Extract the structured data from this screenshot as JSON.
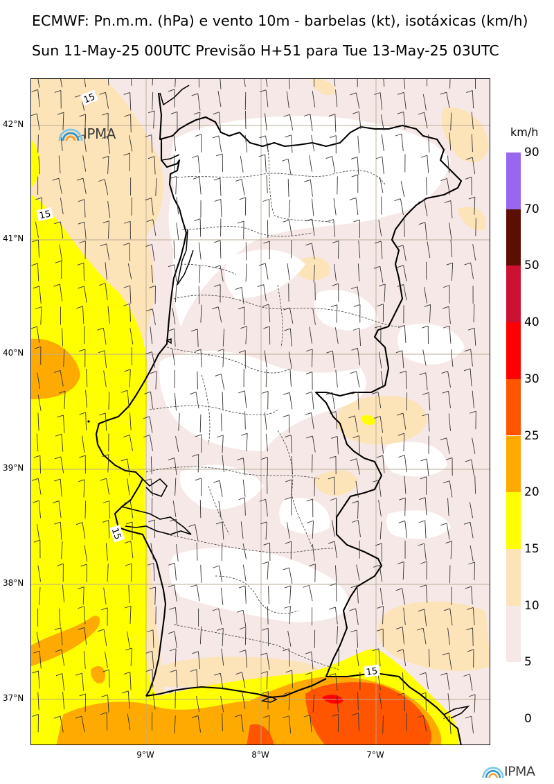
{
  "header": {
    "title_line1": "ECMWF: Pn.m.m. (hPa) e vento 10m - barbelas (kt), isotáxicas (km/h)",
    "title_line2": "Sun 11-May-25 00UTC Previsão H+51 para Tue 13-May-25 03UTC"
  },
  "map": {
    "latitude_labels": [
      "42°N",
      "41°N",
      "40°N",
      "39°N",
      "38°N",
      "37°N"
    ],
    "longitude_labels": [
      "9°W",
      "8°W",
      "7°W"
    ],
    "isotach_labels": [
      "15",
      "15",
      "15",
      "15"
    ],
    "logo_text": "IPMA"
  },
  "legend": {
    "unit": "km/h",
    "levels": [
      "90",
      "70",
      "50",
      "40",
      "30",
      "25",
      "20",
      "15",
      "10",
      "5",
      "0"
    ],
    "colors": [
      "#9966ee",
      "#5c0f00",
      "#cc1133",
      "#ff0000",
      "#ff5500",
      "#ffaa00",
      "#ffff00",
      "#fde3b8",
      "#f6e8e6",
      "#ffffff"
    ]
  },
  "footer": {
    "logo_text": "IPMA"
  }
}
